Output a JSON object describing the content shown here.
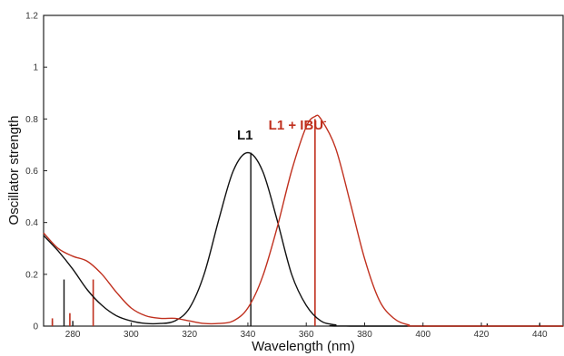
{
  "chart_data": {
    "type": "line",
    "title": "",
    "xlabel": "Wavelength (nm)",
    "ylabel": "Oscillator strength",
    "xlim": [
      270,
      448
    ],
    "ylim": [
      0,
      1.2
    ],
    "x_ticks": [
      280,
      300,
      320,
      340,
      360,
      380,
      400,
      420,
      440
    ],
    "x_tick_labels": [
      "280",
      "300",
      "320",
      "340",
      "360",
      "380",
      "400",
      "420",
      "440"
    ],
    "y_ticks": [
      0,
      0.2,
      0.4,
      0.6,
      0.8,
      1,
      1.2
    ],
    "y_tick_labels": [
      "0",
      "0.2",
      "0.4",
      "0.6",
      "0.8",
      "1",
      "1.2"
    ],
    "grid": false,
    "annotations": [
      {
        "text": "L1",
        "series": "black",
        "x": 339,
        "y": 0.72
      },
      {
        "text": "L1 + IBU",
        "superscript": "-",
        "series": "red",
        "x": 357,
        "y": 0.76
      }
    ],
    "series": [
      {
        "color": "#111111",
        "curve": [
          [
            270,
            0.35
          ],
          [
            275,
            0.29
          ],
          [
            280,
            0.22
          ],
          [
            285,
            0.14
          ],
          [
            290,
            0.08
          ],
          [
            295,
            0.04
          ],
          [
            300,
            0.02
          ],
          [
            305,
            0.01
          ],
          [
            310,
            0.01
          ],
          [
            315,
            0.02
          ],
          [
            320,
            0.07
          ],
          [
            325,
            0.2
          ],
          [
            330,
            0.41
          ],
          [
            335,
            0.6
          ],
          [
            340,
            0.67
          ],
          [
            345,
            0.6
          ],
          [
            350,
            0.41
          ],
          [
            355,
            0.2
          ],
          [
            360,
            0.08
          ],
          [
            365,
            0.02
          ],
          [
            370,
            0.005
          ],
          [
            375,
            0.0
          ],
          [
            448,
            0.0
          ]
        ],
        "sticks": [
          {
            "x": 273,
            "y": 0.02
          },
          {
            "x": 277,
            "y": 0.18
          },
          {
            "x": 280,
            "y": 0.02
          },
          {
            "x": 341,
            "y": 0.67
          },
          {
            "x": 422,
            "y": 0.01
          },
          {
            "x": 440,
            "y": 0.01
          }
        ]
      },
      {
        "color": "#c0301e",
        "curve": [
          [
            270,
            0.36
          ],
          [
            275,
            0.3
          ],
          [
            280,
            0.27
          ],
          [
            285,
            0.25
          ],
          [
            290,
            0.2
          ],
          [
            295,
            0.13
          ],
          [
            300,
            0.07
          ],
          [
            305,
            0.04
          ],
          [
            310,
            0.03
          ],
          [
            315,
            0.03
          ],
          [
            320,
            0.02
          ],
          [
            325,
            0.01
          ],
          [
            330,
            0.01
          ],
          [
            335,
            0.02
          ],
          [
            340,
            0.07
          ],
          [
            345,
            0.19
          ],
          [
            350,
            0.38
          ],
          [
            355,
            0.6
          ],
          [
            360,
            0.77
          ],
          [
            363,
            0.81
          ],
          [
            365,
            0.8
          ],
          [
            370,
            0.69
          ],
          [
            375,
            0.48
          ],
          [
            380,
            0.26
          ],
          [
            385,
            0.1
          ],
          [
            390,
            0.03
          ],
          [
            395,
            0.005
          ],
          [
            400,
            0.0
          ],
          [
            448,
            0.0
          ]
        ],
        "sticks": [
          {
            "x": 273,
            "y": 0.03
          },
          {
            "x": 279,
            "y": 0.05
          },
          {
            "x": 287,
            "y": 0.18
          },
          {
            "x": 363,
            "y": 0.8
          }
        ]
      }
    ]
  }
}
